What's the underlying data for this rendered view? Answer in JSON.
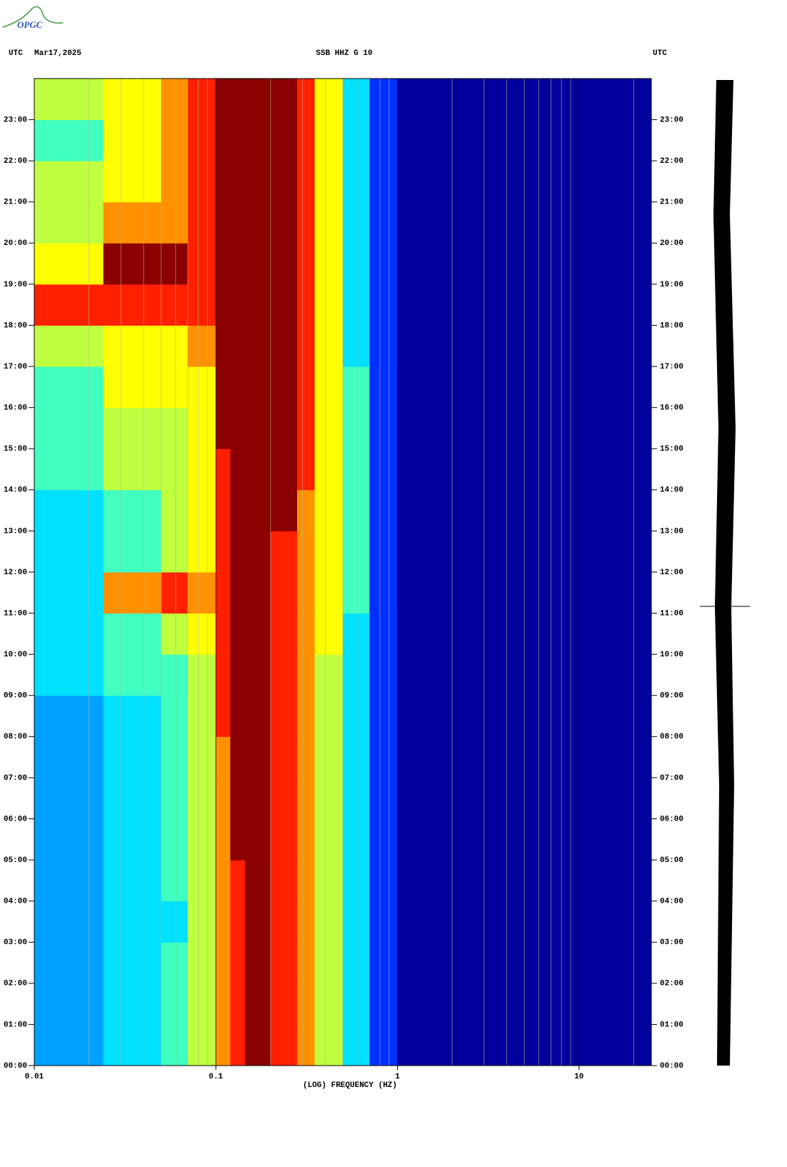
{
  "logo": "OPGC",
  "chart_data": {
    "type": "spectrogram",
    "title": "SSB HHZ G 10",
    "date": "Mar17,2025",
    "left_label": "UTC",
    "right_label": "UTC",
    "xlabel": "(LOG) FREQUENCY (HZ)",
    "xscale": "log",
    "xlim": [
      0.01,
      25
    ],
    "ylim": [
      0,
      24
    ],
    "xticks": [
      0.01,
      0.1,
      1,
      10
    ],
    "xticks_minor": [
      0.02,
      0.03,
      0.04,
      0.05,
      0.06,
      0.07,
      0.08,
      0.09,
      0.2,
      0.3,
      0.4,
      0.5,
      0.6,
      0.7,
      0.8,
      0.9,
      2,
      3,
      4,
      5,
      6,
      7,
      8,
      9,
      20
    ],
    "yticks": [
      {
        "value": 0,
        "label": "00:00"
      },
      {
        "value": 1,
        "label": "01:00"
      },
      {
        "value": 2,
        "label": "02:00"
      },
      {
        "value": 3,
        "label": "03:00"
      },
      {
        "value": 4,
        "label": "04:00"
      },
      {
        "value": 5,
        "label": "05:00"
      },
      {
        "value": 6,
        "label": "06:00"
      },
      {
        "value": 7,
        "label": "07:00"
      },
      {
        "value": 8,
        "label": "08:00"
      },
      {
        "value": 9,
        "label": "09:00"
      },
      {
        "value": 10,
        "label": "10:00"
      },
      {
        "value": 11,
        "label": "11:00"
      },
      {
        "value": 12,
        "label": "12:00"
      },
      {
        "value": 13,
        "label": "13:00"
      },
      {
        "value": 14,
        "label": "14:00"
      },
      {
        "value": 15,
        "label": "15:00"
      },
      {
        "value": 16,
        "label": "16:00"
      },
      {
        "value": 17,
        "label": "17:00"
      },
      {
        "value": 18,
        "label": "18:00"
      },
      {
        "value": 19,
        "label": "19:00"
      },
      {
        "value": 20,
        "label": "20:00"
      },
      {
        "value": 21,
        "label": "21:00"
      },
      {
        "value": 22,
        "label": "22:00"
      },
      {
        "value": 23,
        "label": "23:00"
      }
    ],
    "colormap": [
      "#00009c",
      "#0030ff",
      "#00a0ff",
      "#00e0ff",
      "#40ffc0",
      "#c0ff40",
      "#ffff00",
      "#ff9000",
      "#ff2000",
      "#8b0000"
    ],
    "freq_edges": [
      0.01,
      0.024,
      0.05,
      0.07,
      0.1,
      0.12,
      0.145,
      0.2,
      0.28,
      0.35,
      0.5,
      0.7,
      1,
      25
    ],
    "z": [
      [
        2,
        3,
        4,
        5,
        7,
        8,
        9,
        8,
        7,
        5,
        3,
        1,
        0
      ],
      [
        2,
        3,
        4,
        5,
        7,
        8,
        9,
        8,
        7,
        5,
        3,
        1,
        0
      ],
      [
        2,
        3,
        4,
        5,
        7,
        8,
        9,
        8,
        7,
        5,
        3,
        1,
        0
      ],
      [
        2,
        3,
        3,
        5,
        7,
        8,
        9,
        8,
        7,
        5,
        3,
        1,
        0
      ],
      [
        2,
        3,
        4,
        5,
        7,
        8,
        9,
        8,
        7,
        5,
        3,
        1,
        0
      ],
      [
        2,
        3,
        4,
        5,
        7,
        9,
        9,
        8,
        7,
        5,
        3,
        1,
        0
      ],
      [
        2,
        3,
        4,
        5,
        7,
        9,
        9,
        8,
        7,
        5,
        3,
        1,
        0
      ],
      [
        2,
        3,
        4,
        5,
        7,
        9,
        9,
        8,
        7,
        5,
        3,
        1,
        0
      ],
      [
        2,
        3,
        4,
        5,
        8,
        9,
        9,
        8,
        7,
        5,
        3,
        1,
        0
      ],
      [
        3,
        4,
        4,
        5,
        8,
        9,
        9,
        8,
        7,
        5,
        3,
        1,
        0
      ],
      [
        3,
        4,
        5,
        6,
        8,
        9,
        9,
        8,
        7,
        6,
        3,
        1,
        0
      ],
      [
        3,
        7,
        8,
        7,
        8,
        9,
        9,
        8,
        7,
        6,
        4,
        1,
        0
      ],
      [
        3,
        4,
        5,
        6,
        8,
        9,
        9,
        8,
        7,
        6,
        4,
        1,
        0
      ],
      [
        3,
        4,
        5,
        6,
        8,
        9,
        9,
        9,
        7,
        6,
        4,
        1,
        0
      ],
      [
        4,
        5,
        5,
        6,
        8,
        9,
        9,
        9,
        8,
        6,
        4,
        1,
        0
      ],
      [
        4,
        5,
        5,
        6,
        9,
        9,
        9,
        9,
        8,
        6,
        4,
        1,
        0
      ],
      [
        4,
        6,
        6,
        6,
        9,
        9,
        9,
        9,
        8,
        6,
        4,
        1,
        0
      ],
      [
        5,
        6,
        6,
        7,
        9,
        9,
        9,
        9,
        8,
        6,
        3,
        1,
        0
      ],
      [
        8,
        8,
        8,
        8,
        9,
        9,
        9,
        9,
        8,
        6,
        3,
        1,
        0
      ],
      [
        6,
        9,
        9,
        8,
        9,
        9,
        9,
        9,
        8,
        6,
        3,
        1,
        0
      ],
      [
        5,
        7,
        7,
        8,
        9,
        9,
        9,
        9,
        8,
        6,
        3,
        1,
        0
      ],
      [
        5,
        6,
        7,
        8,
        9,
        9,
        9,
        9,
        8,
        6,
        3,
        1,
        0
      ],
      [
        4,
        6,
        7,
        8,
        9,
        9,
        9,
        9,
        8,
        6,
        3,
        1,
        0
      ],
      [
        5,
        6,
        7,
        8,
        9,
        9,
        9,
        9,
        8,
        6,
        3,
        1,
        0
      ]
    ]
  }
}
